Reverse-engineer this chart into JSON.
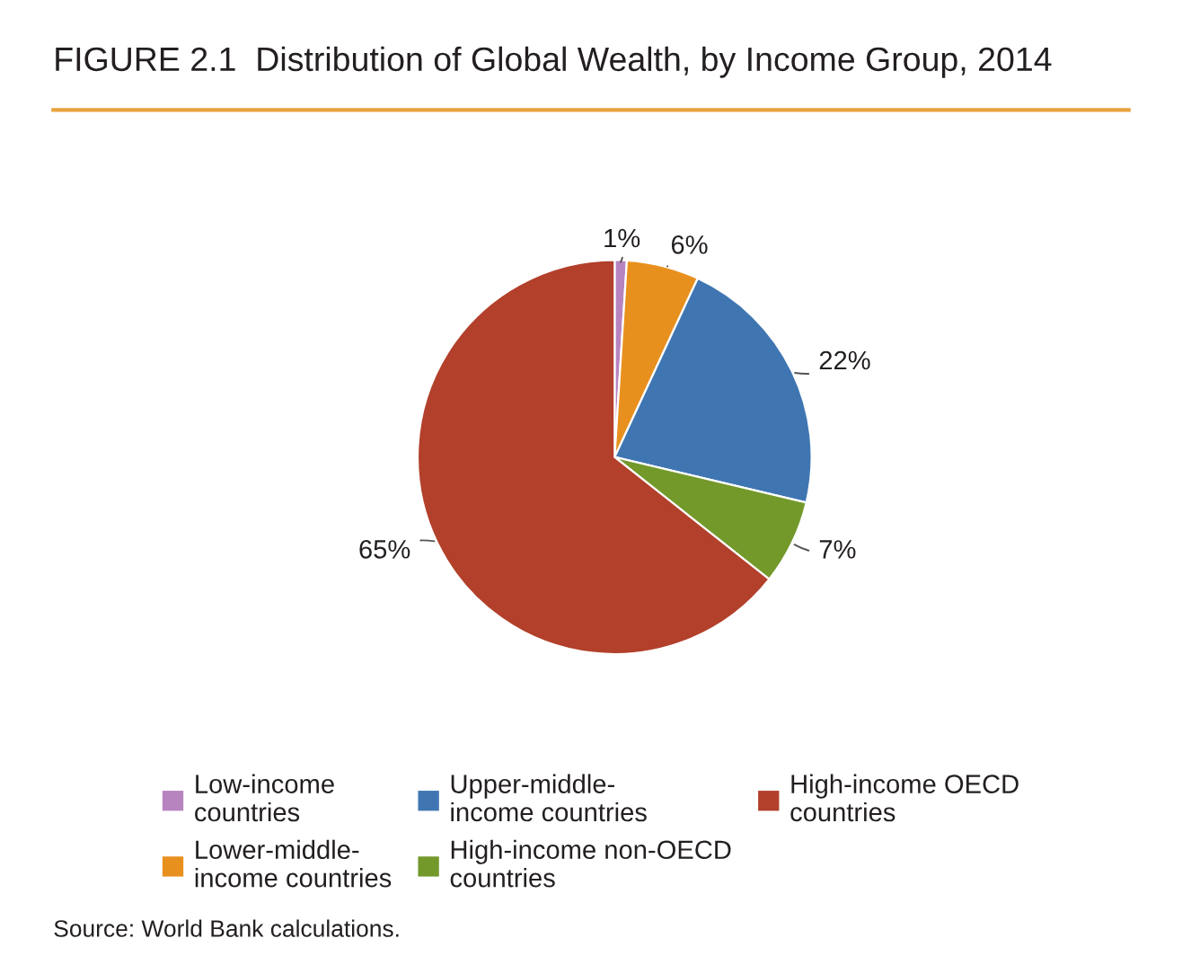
{
  "chart_data": {
    "type": "pie",
    "title": "FIGURE 2.1  Distribution of Global Wealth, by Income Group, 2014",
    "categories": [
      "Low-income\ncountries",
      "Lower-middle-\nincome countries",
      "Upper-middle-\nincome countries",
      "High-income non-OECD\ncountries",
      "High-income OECD\ncountries"
    ],
    "values": [
      1,
      6,
      22,
      7,
      65
    ],
    "colors": [
      "#b784c0",
      "#e8901e",
      "#3f76b2",
      "#73992b",
      "#b2402b"
    ],
    "value_labels": [
      "1%",
      "6%",
      "22%",
      "7%",
      "65%"
    ],
    "legend": "bottom",
    "annotations": [
      "Source: World Bank calculations."
    ]
  }
}
